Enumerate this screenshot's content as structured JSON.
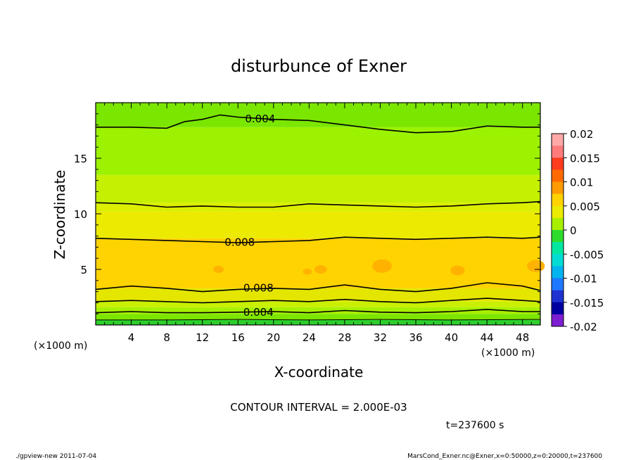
{
  "chart_data": {
    "type": "heatmap",
    "title": "disturbunce of Exner",
    "xlabel": "X-coordinate",
    "ylabel": "Z-coordinate",
    "x_unit": "(×1000 m)",
    "z_unit": "(×1000 m)",
    "xlim": [
      0,
      50
    ],
    "ylim": [
      0,
      20
    ],
    "x_ticks": [
      4,
      8,
      12,
      16,
      20,
      24,
      28,
      32,
      36,
      40,
      44,
      48
    ],
    "y_ticks": [
      5,
      10,
      15
    ],
    "contour_interval_text": "CONTOUR INTERVAL = 2.000E-03",
    "time_text": "t=237600 s",
    "contour_labels": [
      {
        "text": "0.004",
        "x": 18.5,
        "z": 18.6
      },
      {
        "text": "0.008",
        "x": 16.2,
        "z": 7.5
      },
      {
        "text": "0.008",
        "x": 18.3,
        "z": 3.4
      },
      {
        "text": "0.004",
        "x": 18.3,
        "z": 1.2
      }
    ],
    "bands": [
      {
        "z0": 0.0,
        "z1": 0.45,
        "color": "#2dcf2d"
      },
      {
        "z0": 0.45,
        "z1": 1.0,
        "color": "#7de600"
      },
      {
        "z0": 1.0,
        "z1": 1.6,
        "color": "#a8f000"
      },
      {
        "z0": 1.6,
        "z1": 2.1,
        "color": "#c8f000"
      },
      {
        "z0": 2.1,
        "z1": 3.3,
        "color": "#e4e600"
      },
      {
        "z0": 3.3,
        "z1": 7.8,
        "color": "#ffd300"
      },
      {
        "z0": 7.8,
        "z1": 10.2,
        "color": "#ecea00"
      },
      {
        "z0": 10.2,
        "z1": 11.0,
        "color": "#dcef00"
      },
      {
        "z0": 11.0,
        "z1": 13.5,
        "color": "#c5f000"
      },
      {
        "z0": 13.5,
        "z1": 17.8,
        "color": "#9cf200"
      },
      {
        "z0": 17.8,
        "z1": 20.0,
        "color": "#7be600"
      }
    ],
    "contours": [
      {
        "level": "0.004",
        "points": [
          [
            0,
            17.8
          ],
          [
            4,
            17.8
          ],
          [
            8,
            17.7
          ],
          [
            10,
            18.3
          ],
          [
            12,
            18.5
          ],
          [
            14,
            18.9
          ],
          [
            16,
            18.7
          ],
          [
            20,
            18.5
          ],
          [
            24,
            18.4
          ],
          [
            28,
            18.0
          ],
          [
            32,
            17.6
          ],
          [
            36,
            17.3
          ],
          [
            40,
            17.4
          ],
          [
            44,
            17.9
          ],
          [
            48,
            17.8
          ],
          [
            50,
            17.8
          ]
        ]
      },
      {
        "level": "0.006",
        "points": [
          [
            0,
            11.0
          ],
          [
            4,
            10.9
          ],
          [
            8,
            10.6
          ],
          [
            12,
            10.7
          ],
          [
            16,
            10.6
          ],
          [
            20,
            10.6
          ],
          [
            24,
            10.9
          ],
          [
            28,
            10.8
          ],
          [
            32,
            10.7
          ],
          [
            36,
            10.6
          ],
          [
            40,
            10.7
          ],
          [
            44,
            10.9
          ],
          [
            48,
            11.0
          ],
          [
            50,
            11.1
          ]
        ]
      },
      {
        "level": "0.008",
        "points": [
          [
            0,
            7.8
          ],
          [
            4,
            7.7
          ],
          [
            8,
            7.6
          ],
          [
            12,
            7.5
          ],
          [
            16,
            7.4
          ],
          [
            20,
            7.5
          ],
          [
            24,
            7.6
          ],
          [
            28,
            7.9
          ],
          [
            32,
            7.8
          ],
          [
            36,
            7.7
          ],
          [
            40,
            7.8
          ],
          [
            44,
            7.9
          ],
          [
            48,
            7.8
          ],
          [
            50,
            7.9
          ]
        ]
      },
      {
        "level": "0.008",
        "points": [
          [
            0,
            3.2
          ],
          [
            4,
            3.5
          ],
          [
            8,
            3.3
          ],
          [
            12,
            3.0
          ],
          [
            16,
            3.2
          ],
          [
            20,
            3.3
          ],
          [
            24,
            3.2
          ],
          [
            28,
            3.6
          ],
          [
            32,
            3.2
          ],
          [
            36,
            3.0
          ],
          [
            40,
            3.3
          ],
          [
            44,
            3.8
          ],
          [
            48,
            3.5
          ],
          [
            50,
            3.1
          ]
        ]
      },
      {
        "level": "0.006",
        "points": [
          [
            0,
            2.1
          ],
          [
            4,
            2.2
          ],
          [
            8,
            2.1
          ],
          [
            12,
            2.0
          ],
          [
            16,
            2.1
          ],
          [
            20,
            2.2
          ],
          [
            24,
            2.1
          ],
          [
            28,
            2.3
          ],
          [
            32,
            2.1
          ],
          [
            36,
            2.0
          ],
          [
            40,
            2.2
          ],
          [
            44,
            2.4
          ],
          [
            48,
            2.2
          ],
          [
            50,
            2.1
          ]
        ]
      },
      {
        "level": "0.004",
        "points": [
          [
            0,
            1.1
          ],
          [
            4,
            1.2
          ],
          [
            8,
            1.1
          ],
          [
            12,
            1.1
          ],
          [
            16,
            1.15
          ],
          [
            20,
            1.2
          ],
          [
            24,
            1.1
          ],
          [
            28,
            1.3
          ],
          [
            32,
            1.15
          ],
          [
            36,
            1.1
          ],
          [
            40,
            1.2
          ],
          [
            44,
            1.4
          ],
          [
            48,
            1.2
          ],
          [
            50,
            1.2
          ]
        ]
      },
      {
        "level": "0.002",
        "points": [
          [
            0,
            0.45
          ],
          [
            8,
            0.45
          ],
          [
            16,
            0.5
          ],
          [
            24,
            0.45
          ],
          [
            32,
            0.5
          ],
          [
            40,
            0.45
          ],
          [
            50,
            0.5
          ]
        ]
      }
    ],
    "blobs": [
      {
        "x": 13.8,
        "z": 5.0,
        "r": 0.6
      },
      {
        "x": 23.8,
        "z": 4.8,
        "r": 0.5
      },
      {
        "x": 25.3,
        "z": 5.0,
        "r": 0.7
      },
      {
        "x": 32.2,
        "z": 5.3,
        "r": 1.1
      },
      {
        "x": 40.7,
        "z": 4.9,
        "r": 0.8
      },
      {
        "x": 49.5,
        "z": 5.3,
        "r": 1.0
      }
    ],
    "blob_color": "#ffb300",
    "colorbar": {
      "labels": [
        "0.02",
        "0.015",
        "0.01",
        "0.005",
        "0",
        "-0.005",
        "-0.01",
        "-0.015",
        "-0.02"
      ],
      "colors": [
        "#ffa8a8",
        "#ff7b7b",
        "#ff3c1e",
        "#ff6a00",
        "#ff9a00",
        "#ffd200",
        "#ecea00",
        "#a8f000",
        "#2ddc2d",
        "#00e8a0",
        "#00dcd4",
        "#00b4f0",
        "#1e78ff",
        "#1e32d2",
        "#0000a0",
        "#7d1ed2"
      ]
    }
  },
  "footer": {
    "left": "./gpview-new  2011-07-04",
    "right": "MarsCond_Exner.nc@Exner,x=0:50000,z=0:20000,t=237600"
  }
}
